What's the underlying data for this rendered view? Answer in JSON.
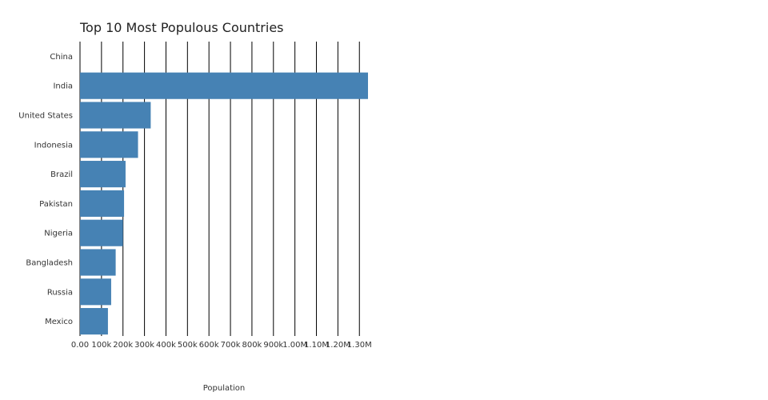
{
  "chart_data": {
    "type": "bar",
    "orientation": "horizontal",
    "title": "Top 10 Most Populous Countries",
    "xlabel": "Population",
    "ylabel": "",
    "categories": [
      "China",
      "India",
      "United States",
      "Indonesia",
      "Brazil",
      "Pakistan",
      "Nigeria",
      "Bangladesh",
      "Russia",
      "Mexico"
    ],
    "values": [
      0,
      1366000,
      329000,
      270000,
      212000,
      205000,
      200000,
      166000,
      145000,
      130000
    ],
    "xlim": [
      0,
      1340000
    ],
    "xticks": [
      {
        "value": 0,
        "label": "0.00"
      },
      {
        "value": 100000,
        "label": "100k"
      },
      {
        "value": 200000,
        "label": "200k"
      },
      {
        "value": 300000,
        "label": "300k"
      },
      {
        "value": 400000,
        "label": "400k"
      },
      {
        "value": 500000,
        "label": "500k"
      },
      {
        "value": 600000,
        "label": "600k"
      },
      {
        "value": 700000,
        "label": "700k"
      },
      {
        "value": 800000,
        "label": "800k"
      },
      {
        "value": 900000,
        "label": "900k"
      },
      {
        "value": 1000000,
        "label": "1.00M"
      },
      {
        "value": 1100000,
        "label": "1.10M"
      },
      {
        "value": 1200000,
        "label": "1.20M"
      },
      {
        "value": 1300000,
        "label": "1.30M"
      }
    ],
    "grid": true,
    "bar_color": "#4682b4",
    "grid_color": "#000000"
  }
}
